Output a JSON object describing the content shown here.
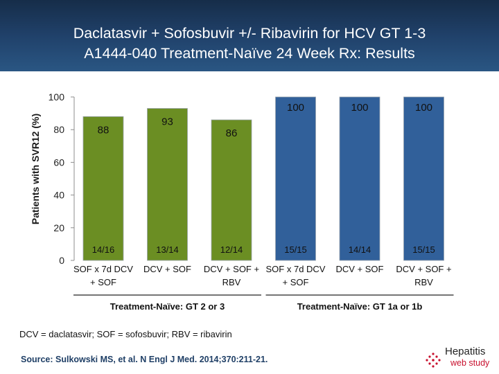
{
  "title": {
    "line1": "Daclatasvir + Sofosbuvir +/- Ribavirin for HCV GT 1-3",
    "line2": "A1444-040 Treatment-Naïve 24 Week Rx: Results"
  },
  "chart_data": {
    "type": "bar",
    "title": "",
    "xlabel": "",
    "ylabel": "Patients with SVR12 (%)",
    "ylim": [
      0,
      100
    ],
    "yticks": [
      0,
      20,
      40,
      60,
      80,
      100
    ],
    "grid": false,
    "categories": [
      [
        "SOF x 7d DCV",
        "+ SOF"
      ],
      [
        "DCV + SOF"
      ],
      [
        "DCV + SOF +",
        "RBV"
      ],
      [
        "SOF x 7d DCV",
        "+ SOF"
      ],
      [
        "DCV + SOF"
      ],
      [
        "DCV + SOF +",
        "RBV"
      ]
    ],
    "values": [
      88,
      93,
      86,
      100,
      100,
      100
    ],
    "counts": [
      "14/16",
      "13/14",
      "12/14",
      "15/15",
      "14/14",
      "15/15"
    ],
    "groups": [
      {
        "label": "Treatment-Naïve: GT 2 or 3",
        "bars": [
          0,
          1,
          2
        ],
        "color": "#6b8e23"
      },
      {
        "label": "Treatment-Naïve: GT 1a or 1b",
        "bars": [
          3,
          4,
          5
        ],
        "color": "#31609a"
      }
    ]
  },
  "footnote": "DCV = daclatasvir; SOF = sofosbuvir; RBV = ribavirin",
  "source": "Source: Sulkowski MS, et al. N Engl J Med. 2014;370:211-21.",
  "logo": {
    "name": "Hepatitis",
    "sub": "web study",
    "accent": "#c8102e"
  }
}
